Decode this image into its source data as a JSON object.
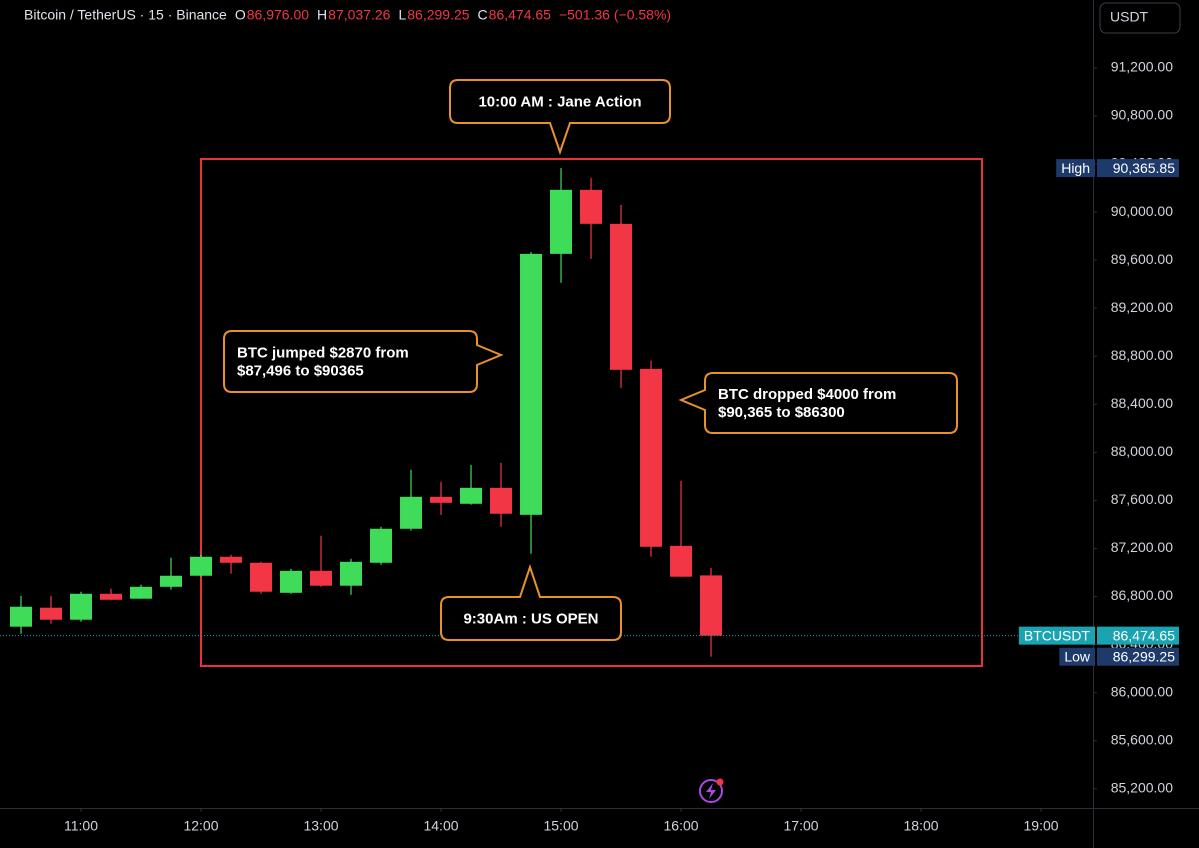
{
  "chart_data": {
    "type": "candlestick",
    "title": "Bitcoin / TetherUS · 15 · Binance",
    "ohlc_legend": [
      {
        "key": "O",
        "text": "86,976.00"
      },
      {
        "key": "H",
        "text": "87,037.26"
      },
      {
        "key": "L",
        "text": "86,299.25"
      },
      {
        "key": "C",
        "text": "86,474.65"
      }
    ],
    "change": "−501.36 (−0.58%)",
    "currency": "USDT",
    "up_color": "#3fdc5a",
    "down_color": "#f23645",
    "x": [
      10.5,
      10.75,
      11,
      11.25,
      11.5,
      11.75,
      12,
      12.25,
      12.5,
      12.75,
      13,
      13.25,
      13.5,
      13.75,
      14,
      14.25,
      14.5,
      14.75,
      15,
      15.25,
      15.5,
      15.75,
      16,
      16.25
    ],
    "open": [
      86549,
      86707,
      86607,
      86823,
      86782,
      86881,
      86973,
      87131,
      87081,
      86831,
      87014,
      86890,
      87081,
      87364,
      87630,
      87572,
      87705,
      87480,
      89652,
      90185,
      89902,
      88695,
      87222,
      86976
    ],
    "high": [
      86806,
      86806,
      86840,
      86865,
      86898,
      87123,
      87148,
      87148,
      87089,
      87031,
      87306,
      87114,
      87381,
      87855,
      87755,
      87896,
      87913,
      89669,
      90365.85,
      90285,
      90060,
      88762,
      87763,
      87037.26
    ],
    "low": [
      86490,
      86574,
      86590,
      86773,
      86782,
      86857,
      86965,
      86990,
      86823,
      86823,
      86881,
      86814,
      87064,
      87348,
      87480,
      87564,
      87381,
      87156,
      89411,
      89611,
      88537,
      87131,
      86965,
      86299.25
    ],
    "close": [
      86715,
      86607,
      86823,
      86773,
      86881,
      86973,
      87131,
      87081,
      86840,
      87014,
      86890,
      87089,
      87364,
      87630,
      87580,
      87705,
      87489,
      89652,
      90185,
      89902,
      88687,
      87214,
      86965,
      86474.65
    ],
    "xlim": [
      10.325,
      19.433
    ],
    "xticks": [
      {
        "value": 11,
        "label": "11:00"
      },
      {
        "value": 12,
        "label": "12:00"
      },
      {
        "value": 13,
        "label": "13:00"
      },
      {
        "value": 14,
        "label": "14:00"
      },
      {
        "value": 15,
        "label": "15:00"
      },
      {
        "value": 16,
        "label": "16:00"
      },
      {
        "value": 17,
        "label": "17:00"
      },
      {
        "value": 18,
        "label": "18:00"
      },
      {
        "value": 19,
        "label": "19:00"
      }
    ],
    "ylim": [
      85040,
      91765
    ],
    "yticks": [
      {
        "value": 85200,
        "label": "85,200.00"
      },
      {
        "value": 85600,
        "label": "85,600.00"
      },
      {
        "value": 86000,
        "label": "86,000.00"
      },
      {
        "value": 86400,
        "label": "86,400.00"
      },
      {
        "value": 86800,
        "label": "86,800.00"
      },
      {
        "value": 87200,
        "label": "87,200.00"
      },
      {
        "value": 87600,
        "label": "87,600.00"
      },
      {
        "value": 88000,
        "label": "88,000.00"
      },
      {
        "value": 88400,
        "label": "88,400.00"
      },
      {
        "value": 88800,
        "label": "88,800.00"
      },
      {
        "value": 89200,
        "label": "89,200.00"
      },
      {
        "value": 89600,
        "label": "89,600.00"
      },
      {
        "value": 90000,
        "label": "90,000.00"
      },
      {
        "value": 90400,
        "label": "90,400.00"
      },
      {
        "value": 90800,
        "label": "90,800.00"
      },
      {
        "value": 91200,
        "label": "91,200.00"
      }
    ],
    "price_markers": {
      "names": [
        "High",
        "BTCUSDT",
        "Low"
      ],
      "values": [
        90365.85,
        86474.65,
        86299.25
      ],
      "value_labels": [
        "90,365.85",
        "86,474.65",
        "86,299.25"
      ],
      "colors": [
        "#1d3a6b",
        "#1aa3b0",
        "#1d3a6b"
      ]
    },
    "annotations": [
      {
        "lines": [
          "10:00 AM : Jane Action"
        ]
      },
      {
        "lines": [
          "BTC jumped $2870 from",
          "$87,496 to $90365"
        ]
      },
      {
        "lines": [
          "BTC dropped $4000 from",
          "$90,365 to $86300"
        ]
      },
      {
        "lines": [
          "9:30Am : US OPEN"
        ]
      }
    ]
  }
}
